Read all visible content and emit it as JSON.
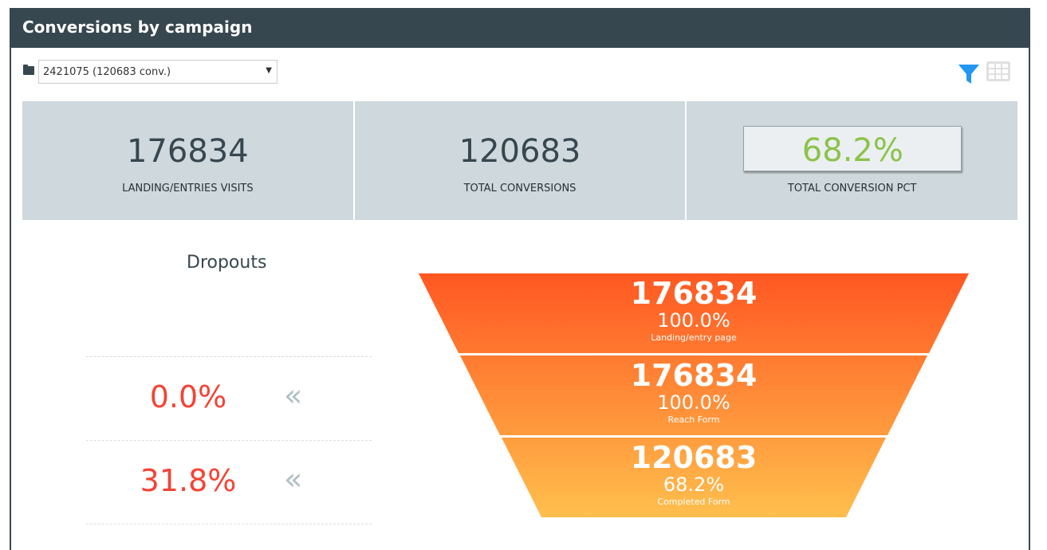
{
  "header": {
    "title": "Conversions by campaign"
  },
  "campaign_select": {
    "value": "2421075 (120683 conv.)",
    "icon": "folder-icon"
  },
  "toolbar": {
    "filter_icon": "filter-icon",
    "table_icon": "table-icon",
    "filter_color": "#2196f3"
  },
  "stats": [
    {
      "value": "176834",
      "label": "LANDING/ENTRIES VISITS"
    },
    {
      "value": "120683",
      "label": "TOTAL CONVERSIONS"
    },
    {
      "value": "68.2%",
      "label": "TOTAL CONVERSION PCT"
    }
  ],
  "dropouts": {
    "title": "Dropouts",
    "rows": [
      {
        "value": "0.0%"
      },
      {
        "value": "31.8%"
      }
    ]
  },
  "chart_data": {
    "type": "funnel",
    "stages": [
      {
        "value": "176834",
        "pct": "100.0%",
        "label": "Landing/entry page"
      },
      {
        "value": "176834",
        "pct": "100.0%",
        "label": "Reach Form"
      },
      {
        "value": "120683",
        "pct": "68.2%",
        "label": "Completed Form"
      }
    ],
    "colors": {
      "top": "#ff5722",
      "bottom": "#ffbf4d"
    }
  }
}
